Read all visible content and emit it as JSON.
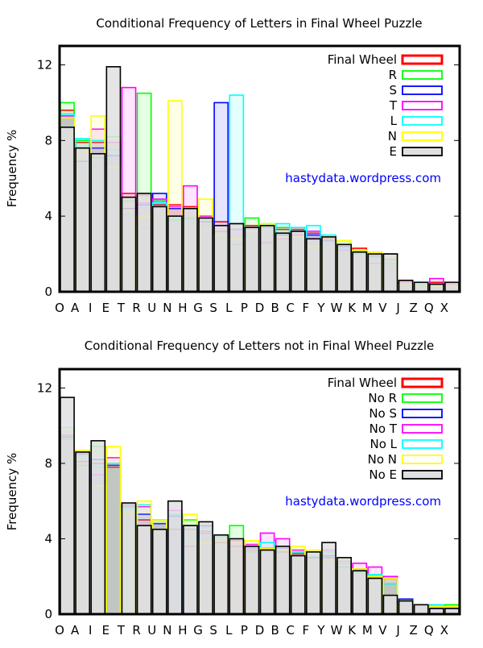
{
  "chart_data": [
    {
      "type": "bar",
      "title": "Conditional Frequency of Letters in Final Wheel Puzzle",
      "xlabel": "",
      "ylabel": "Frequency %",
      "ylim": [
        0,
        13
      ],
      "yticks": [
        0,
        4,
        8,
        12
      ],
      "watermark": "hastydata.wordpress.com",
      "legend_position": "top-right",
      "categories": [
        "O",
        "A",
        "I",
        "E",
        "T",
        "R",
        "U",
        "N",
        "H",
        "G",
        "S",
        "L",
        "P",
        "D",
        "B",
        "C",
        "F",
        "Y",
        "W",
        "K",
        "M",
        "V",
        "J",
        "Z",
        "Q",
        "X"
      ],
      "series": [
        {
          "name": "Final Wheel",
          "color": "#ff0000",
          "values": [
            9.6,
            7.9,
            7.9,
            7.9,
            5.2,
            5.1,
            4.6,
            4.6,
            4.5,
            3.9,
            3.7,
            3.6,
            3.5,
            3.5,
            3.3,
            3.3,
            3.1,
            2.8,
            2.5,
            2.3,
            2.1,
            2.0,
            0.6,
            0.4,
            0.5,
            0.4
          ]
        },
        {
          "name": "R",
          "color": "#00ff00",
          "values": [
            10.0,
            8.0,
            7.1,
            8.2,
            4.8,
            10.5,
            4.8,
            3.8,
            3.9,
            3.9,
            3.2,
            2.5,
            3.9,
            3.6,
            3.4,
            3.2,
            2.8,
            2.9,
            2.7,
            2.2,
            1.9,
            1.7,
            0.5,
            0.4,
            0.4,
            0.4
          ]
        },
        {
          "name": "S",
          "color": "#0000ff",
          "values": [
            9.2,
            6.9,
            7.6,
            7.2,
            4.4,
            4.6,
            5.2,
            4.4,
            4.4,
            3.7,
            10.0,
            3.3,
            3.4,
            3.4,
            3.0,
            3.2,
            3.0,
            2.7,
            2.4,
            2.1,
            1.9,
            1.8,
            0.5,
            0.3,
            0.4,
            0.3
          ]
        },
        {
          "name": "T",
          "color": "#ff00ff",
          "values": [
            9.3,
            7.6,
            8.6,
            7.9,
            10.8,
            4.7,
            4.9,
            4.5,
            5.6,
            4.0,
            3.2,
            3.3,
            3.3,
            2.6,
            2.8,
            3.0,
            3.2,
            2.9,
            2.2,
            2.0,
            1.5,
            1.5,
            0.5,
            0.4,
            0.7,
            0.4
          ]
        },
        {
          "name": "L",
          "color": "#00ffff",
          "values": [
            9.4,
            8.1,
            8.0,
            7.5,
            4.1,
            3.4,
            4.7,
            3.9,
            3.8,
            3.5,
            3.0,
            10.4,
            3.3,
            3.5,
            3.6,
            3.4,
            3.5,
            3.0,
            2.3,
            2.0,
            1.8,
            1.5,
            0.4,
            0.4,
            0.3,
            0.3
          ]
        },
        {
          "name": "N",
          "color": "#ffff00",
          "values": [
            9.2,
            7.4,
            9.3,
            6.6,
            4.3,
            4.0,
            4.5,
            10.1,
            4.4,
            4.9,
            3.0,
            2.8,
            3.2,
            3.6,
            2.9,
            2.9,
            2.4,
            2.9,
            2.7,
            2.2,
            2.1,
            1.8,
            0.4,
            0.3,
            0.3,
            0.3
          ]
        },
        {
          "name": "E",
          "color": "#000000",
          "fill": "#e0e0e0",
          "values": [
            8.7,
            7.6,
            7.3,
            11.9,
            5.0,
            5.2,
            4.5,
            4.0,
            4.4,
            3.9,
            3.5,
            3.6,
            3.4,
            3.5,
            3.1,
            3.2,
            2.8,
            2.9,
            2.5,
            2.1,
            2.0,
            2.0,
            0.6,
            0.5,
            0.4,
            0.5
          ]
        }
      ]
    },
    {
      "type": "bar",
      "title": "Conditional Frequency of Letters not in Final Wheel Puzzle",
      "xlabel": "",
      "ylabel": "Frequency %",
      "ylim": [
        0,
        13
      ],
      "yticks": [
        0,
        4,
        8,
        12
      ],
      "watermark": "hastydata.wordpress.com",
      "legend_position": "top-right",
      "categories": [
        "O",
        "A",
        "I",
        "E",
        "T",
        "R",
        "U",
        "N",
        "H",
        "G",
        "S",
        "L",
        "P",
        "D",
        "B",
        "C",
        "F",
        "Y",
        "W",
        "K",
        "M",
        "V",
        "J",
        "Z",
        "Q",
        "X"
      ],
      "series": [
        {
          "name": "Final Wheel",
          "color": "#ff0000",
          "values": [
            9.7,
            8.1,
            8.0,
            7.8,
            5.7,
            5.0,
            4.8,
            4.5,
            4.5,
            4.3,
            3.8,
            3.6,
            3.4,
            3.5,
            3.3,
            3.2,
            3.0,
            3.0,
            2.7,
            2.3,
            2.0,
            1.6,
            0.7,
            0.5,
            0.4,
            0.4
          ]
        },
        {
          "name": "No R",
          "color": "#00ff00",
          "values": [
            9.3,
            7.9,
            8.9,
            7.9,
            5.6,
            0.0,
            5.0,
            5.3,
            5.0,
            4.6,
            4.1,
            4.7,
            3.3,
            3.5,
            3.6,
            3.3,
            3.0,
            3.3,
            2.5,
            2.2,
            2.1,
            1.9,
            0.8,
            0.5,
            0.5,
            0.5
          ]
        },
        {
          "name": "No S",
          "color": "#0000ff",
          "values": [
            9.4,
            8.5,
            8.2,
            7.9,
            5.8,
            5.3,
            4.8,
            5.2,
            4.7,
            4.7,
            0.0,
            3.9,
            3.5,
            3.5,
            3.5,
            3.3,
            3.0,
            3.1,
            2.7,
            2.4,
            2.0,
            1.9,
            0.8,
            0.5,
            0.3,
            0.3
          ]
        },
        {
          "name": "No T",
          "color": "#ff00ff",
          "values": [
            9.5,
            8.6,
            7.4,
            8.3,
            0.0,
            5.7,
            5.0,
            5.5,
            3.6,
            4.4,
            4.0,
            3.9,
            3.7,
            4.3,
            4.0,
            3.4,
            3.1,
            3.4,
            2.8,
            2.7,
            2.5,
            2.0,
            0.7,
            0.5,
            0.3,
            0.3
          ]
        },
        {
          "name": "No L",
          "color": "#00ffff",
          "values": [
            9.9,
            8.4,
            7.8,
            8.0,
            5.6,
            5.8,
            5.0,
            5.3,
            4.7,
            4.6,
            4.1,
            0.0,
            3.6,
            3.8,
            3.6,
            3.3,
            3.1,
            3.3,
            2.7,
            2.3,
            2.1,
            1.6,
            0.7,
            0.5,
            0.5,
            0.4
          ]
        },
        {
          "name": "No N",
          "color": "#ffff00",
          "values": [
            9.7,
            8.7,
            6.8,
            8.9,
            5.4,
            6.0,
            5.0,
            0.0,
            5.3,
            3.8,
            4.0,
            3.8,
            3.9,
            3.5,
            3.4,
            3.6,
            3.4,
            2.8,
            2.9,
            2.4,
            2.0,
            1.9,
            0.7,
            0.5,
            0.4,
            0.4
          ]
        },
        {
          "name": "No E",
          "color": "#000000",
          "fill": "#e0e0e0",
          "values": [
            11.5,
            8.6,
            9.2,
            0.0,
            5.9,
            4.7,
            4.5,
            6.0,
            4.7,
            4.9,
            4.2,
            4.0,
            3.6,
            3.4,
            3.6,
            3.1,
            3.3,
            3.8,
            3.0,
            2.3,
            1.9,
            1.0,
            0.7,
            0.5,
            0.3,
            0.3
          ]
        }
      ]
    }
  ]
}
